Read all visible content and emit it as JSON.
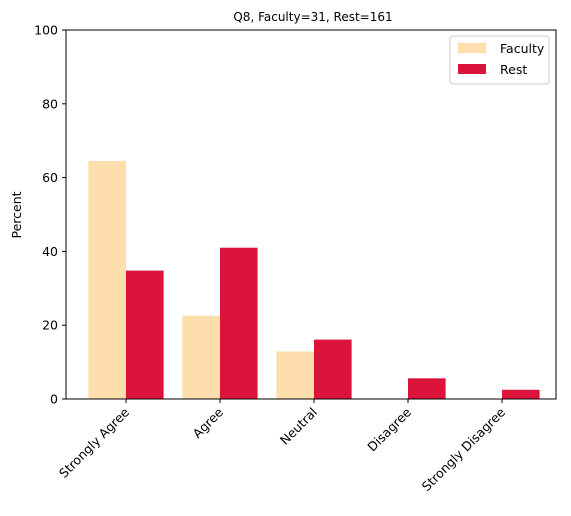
{
  "chart_data": {
    "type": "bar",
    "title": "Q8, Faculty=31, Rest=161",
    "xlabel": "",
    "ylabel": "Percent",
    "ylim": [
      0,
      100
    ],
    "yticks": [
      "0",
      "20",
      "40",
      "60",
      "80",
      "100"
    ],
    "categories": [
      "Strongly Agree",
      "Agree",
      "Neutral",
      "Disagree",
      "Strongly Disagree"
    ],
    "series": [
      {
        "name": "Faculty",
        "color": "#FFDEAD",
        "values": [
          64.5,
          22.6,
          12.9,
          0,
          0
        ]
      },
      {
        "name": "Rest",
        "color": "#DC143C",
        "values": [
          34.8,
          41.0,
          16.1,
          5.6,
          2.5
        ]
      }
    ],
    "legend_position": "top-right",
    "grid": false
  }
}
